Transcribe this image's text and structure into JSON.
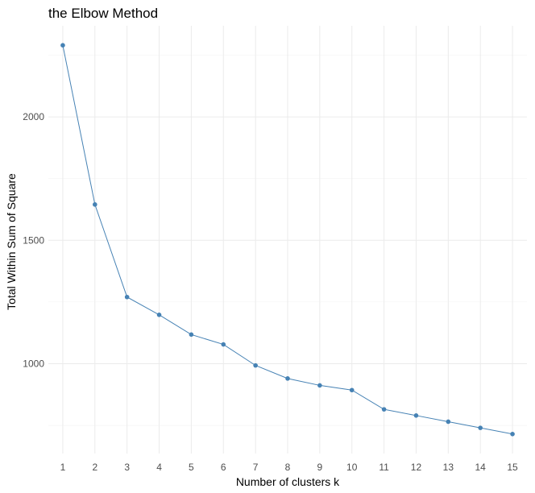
{
  "chart_data": {
    "type": "line",
    "title": "the Elbow Method",
    "xlabel": "Number of clusters k",
    "ylabel": "Total Within Sum of Square",
    "x": [
      1,
      2,
      3,
      4,
      5,
      6,
      7,
      8,
      9,
      10,
      11,
      12,
      13,
      14,
      15
    ],
    "series": [
      {
        "values": [
          2290,
          1645,
          1270,
          1198,
          1118,
          1078,
          993,
          940,
          912,
          893,
          815,
          790,
          765,
          740,
          715
        ]
      }
    ],
    "xticks": [
      1,
      2,
      3,
      4,
      5,
      6,
      7,
      8,
      9,
      10,
      11,
      12,
      13,
      14,
      15
    ],
    "yticks": [
      1000,
      1500,
      2000
    ],
    "xlim": [
      0.55,
      15.45
    ],
    "ylim": [
      636,
      2369
    ],
    "grid": true,
    "legend": "none",
    "colors": {
      "line": "#4682b4",
      "point": "#4682b4"
    }
  }
}
